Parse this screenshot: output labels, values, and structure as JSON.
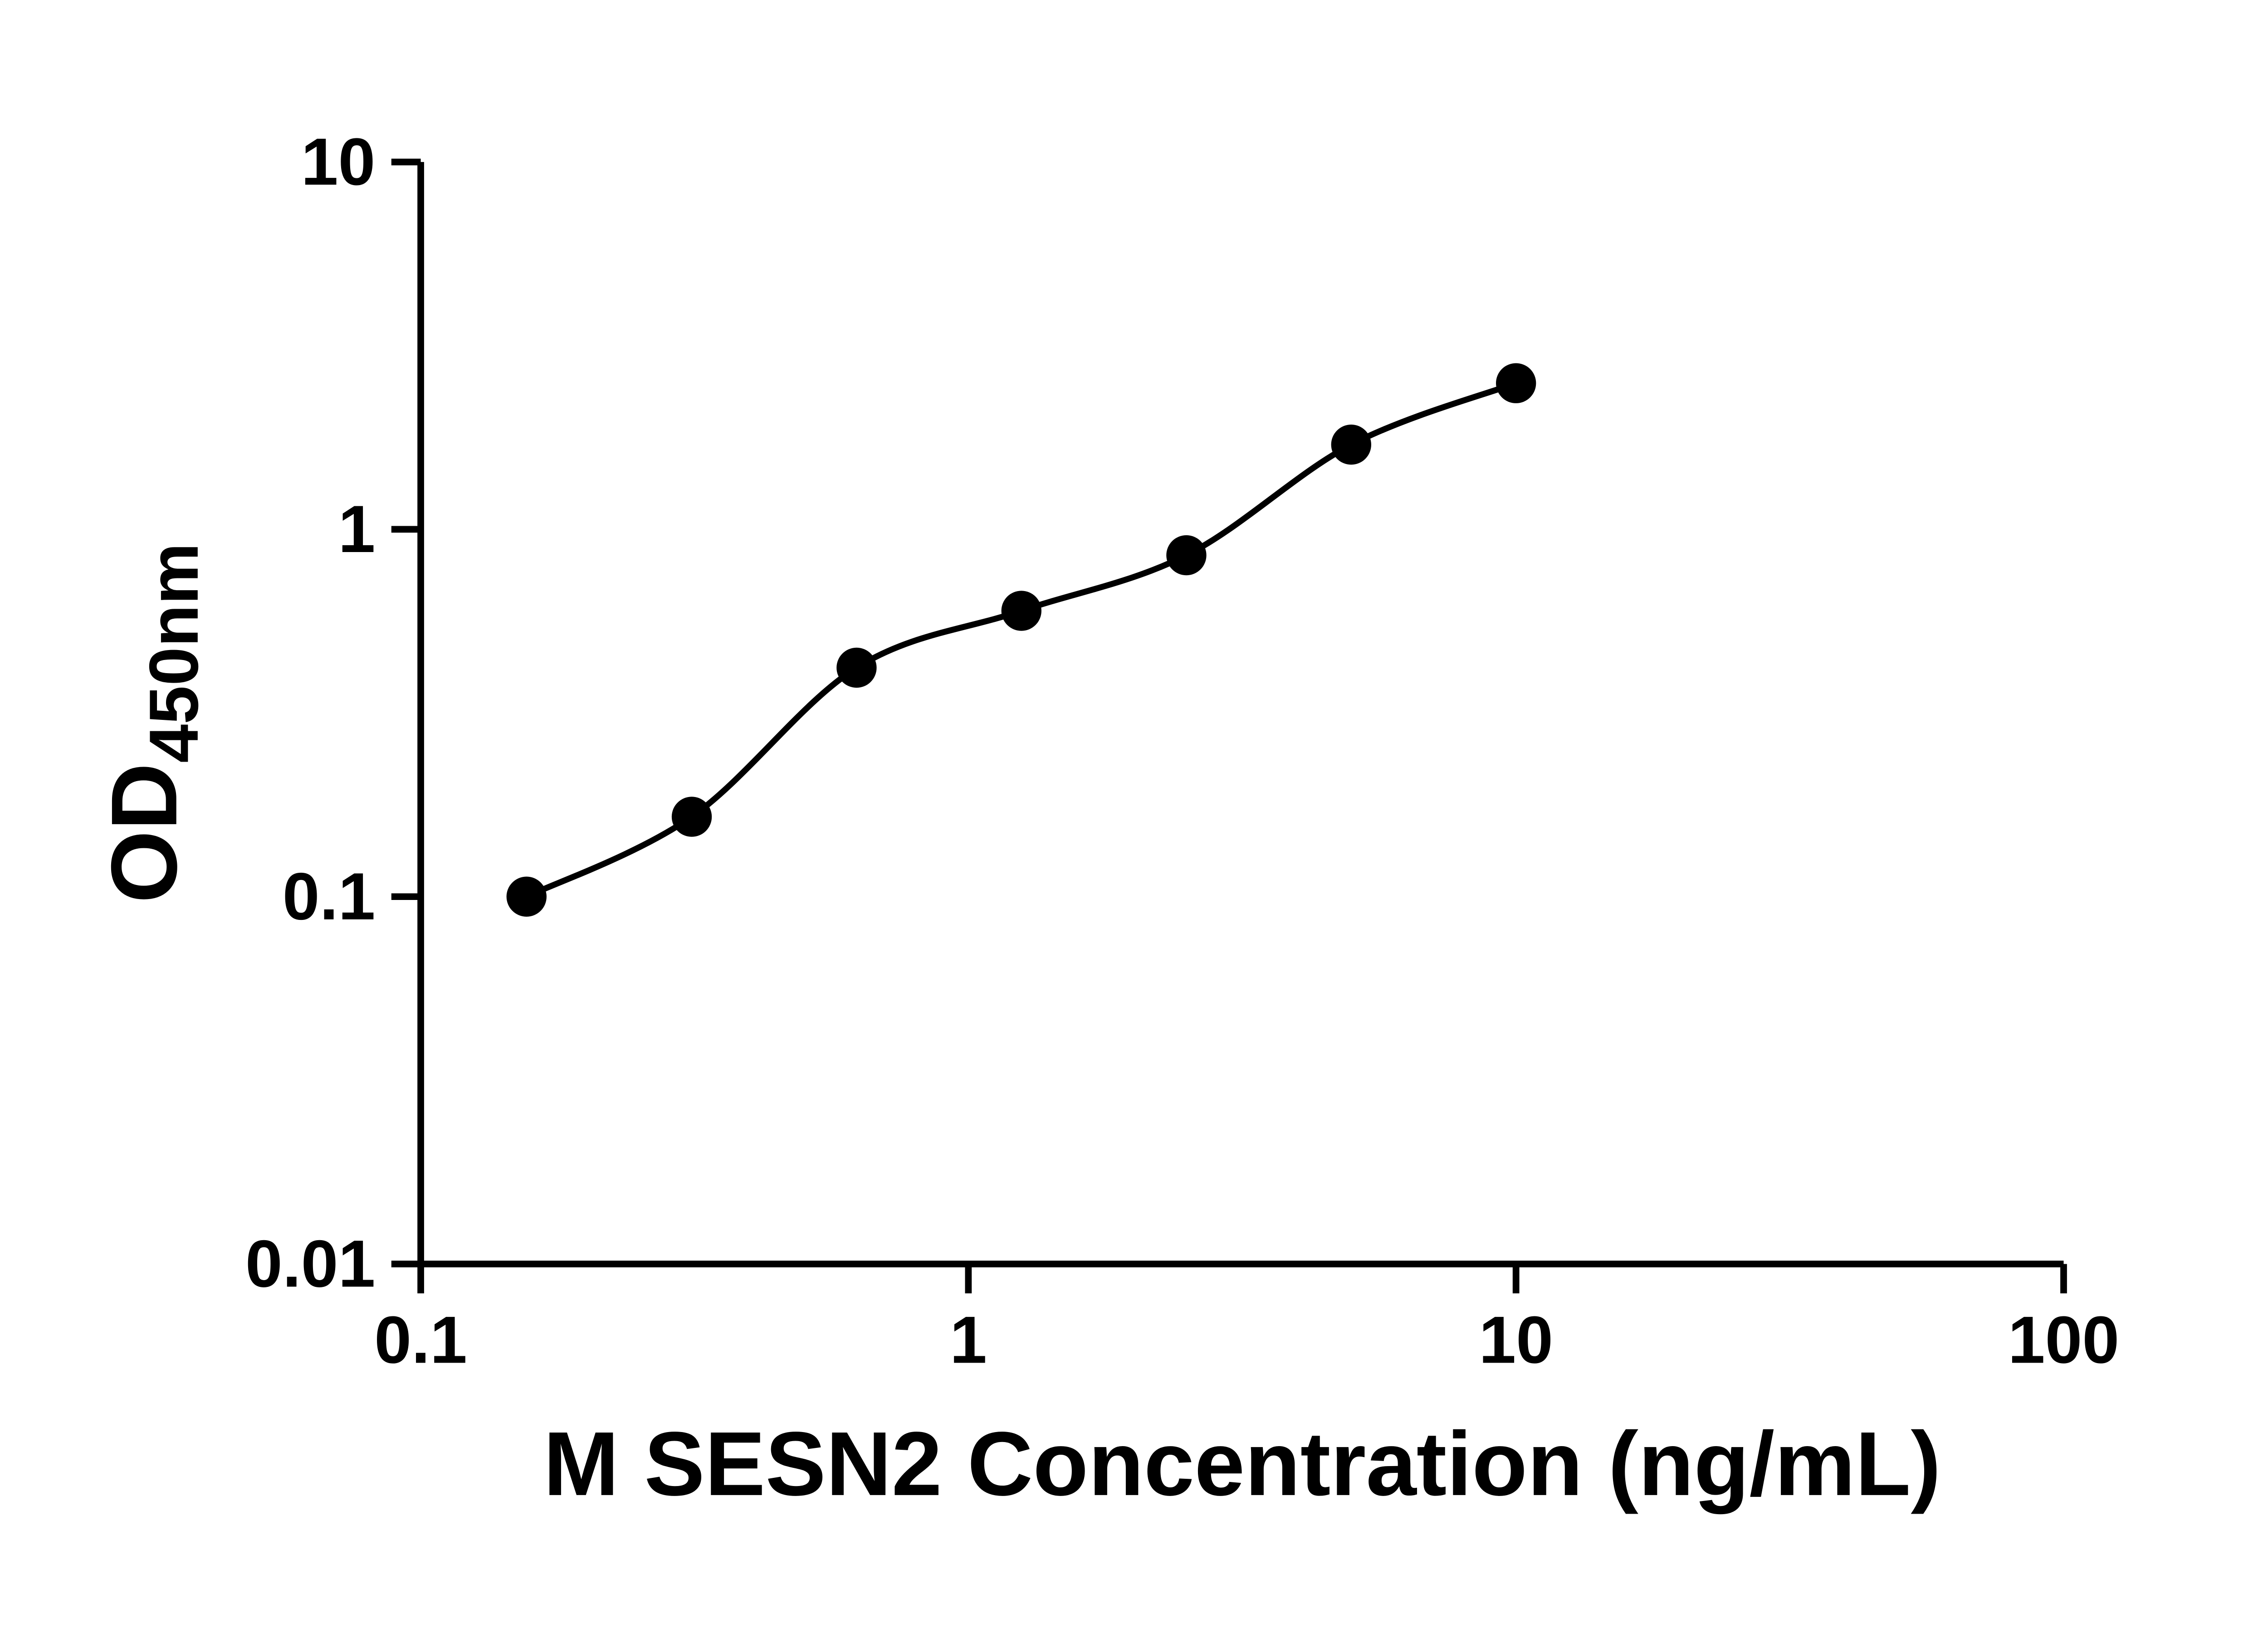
{
  "figure": {
    "background": "#ffffff",
    "foreground": "#000000"
  },
  "chart_data": {
    "type": "scatter",
    "curve": "smooth standard-curve fit through points",
    "x": [
      0.156,
      0.3125,
      0.625,
      1.25,
      2.5,
      5,
      10
    ],
    "y": [
      0.1,
      0.165,
      0.42,
      0.6,
      0.85,
      1.7,
      2.5
    ],
    "xlabel": "M SESN2 Concentration (ng/mL)",
    "ylabel_main": "OD",
    "ylabel_sub": "450nm",
    "xscale": "log",
    "yscale": "log",
    "xlim": [
      0.1,
      100
    ],
    "ylim": [
      0.01,
      10
    ],
    "x_ticks": [
      {
        "value": 0.1,
        "label": "0.1"
      },
      {
        "value": 1,
        "label": "1"
      },
      {
        "value": 10,
        "label": "10"
      },
      {
        "value": 100,
        "label": "100"
      }
    ],
    "y_ticks": [
      {
        "value": 0.01,
        "label": "0.01"
      },
      {
        "value": 0.1,
        "label": "0.1"
      },
      {
        "value": 1,
        "label": "1"
      },
      {
        "value": 10,
        "label": "10"
      }
    ],
    "grid": false,
    "legend": "none",
    "marker_color": "#000000",
    "line_color": "#000000"
  }
}
